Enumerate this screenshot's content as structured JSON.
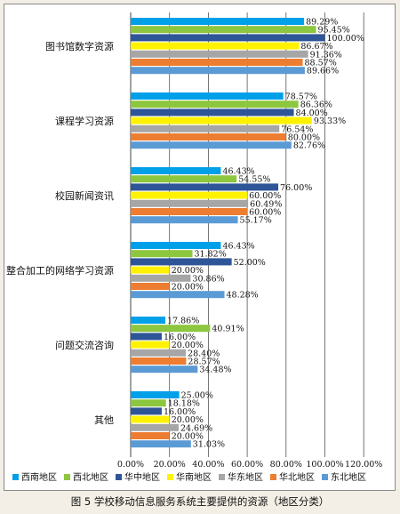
{
  "caption": "图 5  学校移动信息服务系统主要提供的资源（地区分类）",
  "chart_data": {
    "type": "bar",
    "orientation": "horizontal",
    "categories": [
      "图书馆数字资源",
      "课程学习资源",
      "校园新闻资讯",
      "整合加工的网络学习资源",
      "问题交流咨询",
      "其他"
    ],
    "series": [
      {
        "name": "西南地区",
        "color": "#00a0e9",
        "values": [
          89.29,
          78.57,
          46.43,
          46.43,
          17.86,
          25.0
        ]
      },
      {
        "name": "西北地区",
        "color": "#8dc63f",
        "values": [
          95.45,
          86.36,
          54.55,
          31.82,
          40.91,
          18.18
        ]
      },
      {
        "name": "华中地区",
        "color": "#2e5597",
        "values": [
          100.0,
          84.0,
          76.0,
          52.0,
          16.0,
          16.0
        ]
      },
      {
        "name": "华南地区",
        "color": "#fff200",
        "values": [
          86.67,
          93.33,
          60.0,
          20.0,
          20.0,
          20.0
        ]
      },
      {
        "name": "华东地区",
        "color": "#a6a6a6",
        "values": [
          91.36,
          76.54,
          60.49,
          30.86,
          28.4,
          24.69
        ]
      },
      {
        "name": "华北地区",
        "color": "#ed7d31",
        "values": [
          88.57,
          80.0,
          60.0,
          20.0,
          28.57,
          20.0
        ]
      },
      {
        "name": "东北地区",
        "color": "#5b9bd5",
        "values": [
          89.66,
          82.76,
          55.17,
          48.28,
          34.48,
          31.03
        ]
      }
    ],
    "xlim": [
      0,
      120
    ],
    "xticks": [
      "0.00%",
      "20.00%",
      "40.00%",
      "60.00%",
      "80.00%",
      "100.00%",
      "120.00%"
    ],
    "grid": "vertical",
    "legend": "bottom"
  }
}
